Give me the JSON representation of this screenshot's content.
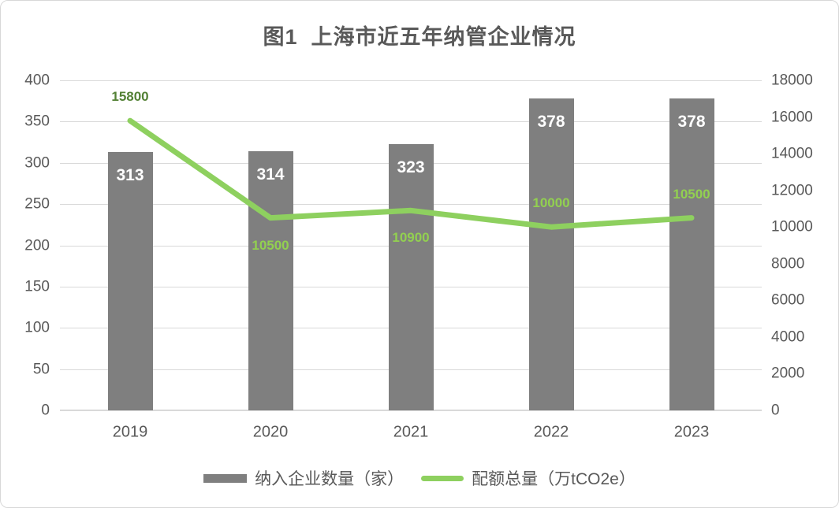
{
  "title": "图1  上海市近五年纳管企业情况",
  "chart_data": {
    "type": "bar+line",
    "categories": [
      "2019",
      "2020",
      "2021",
      "2022",
      "2023"
    ],
    "series": [
      {
        "name": "纳入企业数量（家）",
        "type": "bar",
        "axis": "left",
        "values": [
          313,
          314,
          323,
          378,
          378
        ],
        "labels": [
          "313",
          "314",
          "323",
          "378",
          "378"
        ],
        "color": "#7f7f7f",
        "label_color": "#ffffff"
      },
      {
        "name": "配额总量（万tCO2e）",
        "type": "line",
        "axis": "right",
        "values": [
          15800,
          10500,
          10900,
          10000,
          10500
        ],
        "labels": [
          "15800",
          "10500",
          "10900",
          "10000",
          "10500"
        ],
        "color": "#8ed05f",
        "label_positions": [
          "above",
          "below",
          "below",
          "above",
          "above"
        ],
        "label_colors": [
          "#538135",
          "#92d050",
          "#92d050",
          "#92d050",
          "#92d050"
        ]
      }
    ],
    "left_axis": {
      "min": 0,
      "max": 400,
      "step": 50,
      "ticks": [
        "400",
        "350",
        "300",
        "250",
        "200",
        "150",
        "100",
        "50",
        "0"
      ]
    },
    "right_axis": {
      "min": 0,
      "max": 18000,
      "step": 2000,
      "ticks": [
        "18000",
        "16000",
        "14000",
        "12000",
        "10000",
        "8000",
        "6000",
        "4000",
        "2000",
        "0"
      ]
    },
    "grid": true,
    "legend_position": "bottom",
    "colors": {
      "text": "#595959",
      "grid": "#d9d9d9",
      "bar": "#7f7f7f",
      "line": "#8ed05f",
      "label_dark_green": "#538135",
      "label_light_green": "#92d050"
    }
  },
  "legend": {
    "items": [
      {
        "label": "纳入企业数量（家）",
        "swatch": "bar",
        "color": "#7f7f7f"
      },
      {
        "label": "配额总量（万tCO2e）",
        "swatch": "line",
        "color": "#8ed05f"
      }
    ]
  }
}
